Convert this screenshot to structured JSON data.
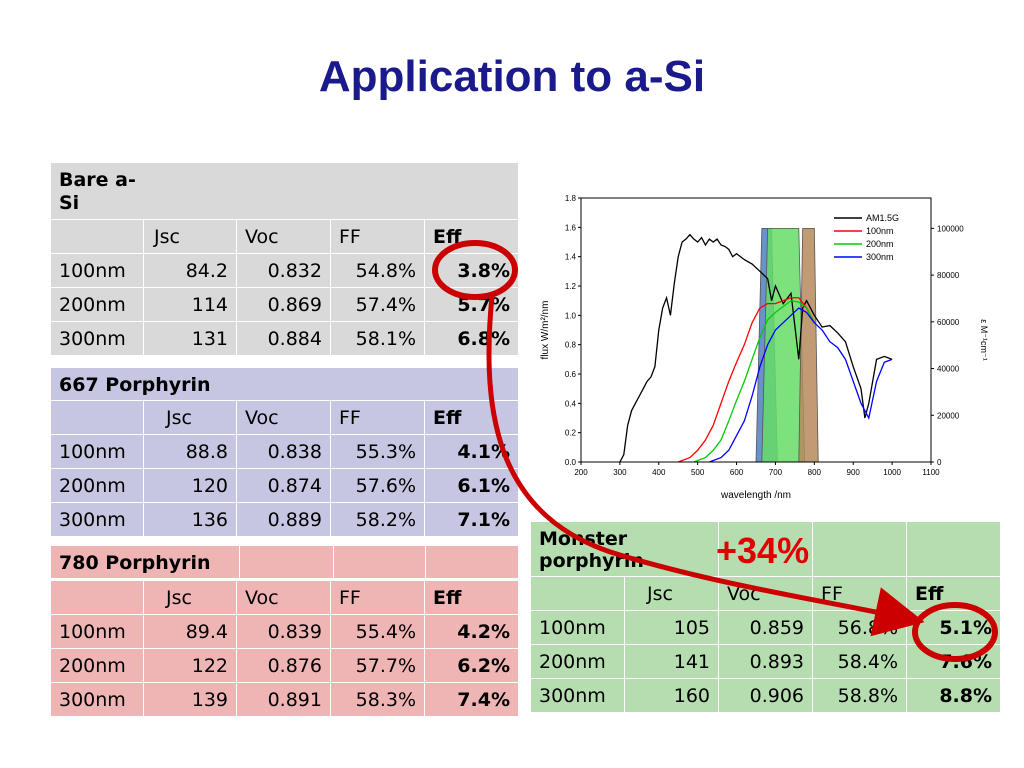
{
  "slide": {
    "title": "Application to a-Si"
  },
  "tables": {
    "bare": {
      "group": "Bare a-Si",
      "headers": [
        "",
        "Jsc",
        "Voc",
        "FF",
        "Eff"
      ],
      "rows": [
        [
          "100nm",
          "84.2",
          "0.832",
          "54.8%",
          "3.8%"
        ],
        [
          "200nm",
          "114",
          "0.869",
          "57.4%",
          "5.7%"
        ],
        [
          "300nm",
          "131",
          "0.884",
          "58.1%",
          "6.8%"
        ]
      ]
    },
    "p667": {
      "group": "667 Porphyrin",
      "headers": [
        "",
        "Jsc",
        "Voc",
        "FF",
        "Eff"
      ],
      "rows": [
        [
          "100nm",
          "88.8",
          "0.838",
          "55.3%",
          "4.1%"
        ],
        [
          "200nm",
          "120",
          "0.874",
          "57.6%",
          "6.1%"
        ],
        [
          "300nm",
          "136",
          "0.889",
          "58.2%",
          "7.1%"
        ]
      ]
    },
    "p780": {
      "group": "780 Porphyrin",
      "headers": [
        "",
        "Jsc",
        "Voc",
        "FF",
        "Eff"
      ],
      "rows": [
        [
          "100nm",
          "89.4",
          "0.839",
          "55.4%",
          "4.2%"
        ],
        [
          "200nm",
          "122",
          "0.876",
          "57.7%",
          "6.2%"
        ],
        [
          "300nm",
          "139",
          "0.891",
          "58.3%",
          "7.4%"
        ]
      ]
    },
    "monster": {
      "group": "Monster porphyrin",
      "headers": [
        "",
        "Jsc",
        "Voc",
        "FF",
        "Eff"
      ],
      "rows": [
        [
          "100nm",
          "105",
          "0.859",
          "56.8%",
          "5.1%"
        ],
        [
          "200nm",
          "141",
          "0.893",
          "58.4%",
          "7.6%"
        ],
        [
          "300nm",
          "160",
          "0.906",
          "58.8%",
          "8.8%"
        ]
      ]
    }
  },
  "annotation": {
    "improvement": "+34%",
    "color": "#cc0000"
  },
  "chart_data": {
    "type": "line",
    "xlabel": "wavelength /nm",
    "ylabel": "flux W/m²/nm",
    "y2label": "ε M⁻¹cm⁻¹",
    "xlim": [
      200,
      1100
    ],
    "ylim": [
      0,
      1.8
    ],
    "y2lim": [
      0,
      113000
    ],
    "xticks": [
      200,
      300,
      400,
      500,
      600,
      700,
      800,
      900,
      1000,
      1100
    ],
    "yticks": [
      0.0,
      0.2,
      0.4,
      0.6,
      0.8,
      1.0,
      1.2,
      1.4,
      1.6,
      1.8
    ],
    "y2ticks": [
      0,
      20000,
      40000,
      60000,
      80000,
      100000
    ],
    "legend_position": "top-right",
    "series": [
      {
        "name": "AM1.5G",
        "color": "#000000",
        "x": [
          300,
          310,
          320,
          330,
          340,
          350,
          360,
          370,
          380,
          390,
          400,
          410,
          420,
          430,
          440,
          450,
          460,
          470,
          480,
          490,
          500,
          510,
          520,
          530,
          540,
          550,
          560,
          570,
          580,
          590,
          600,
          620,
          640,
          660,
          680,
          690,
          700,
          720,
          740,
          760,
          770,
          780,
          800,
          820,
          840,
          860,
          880,
          900,
          920,
          930,
          940,
          950,
          960,
          980,
          1000
        ],
        "y": [
          0.0,
          0.05,
          0.25,
          0.35,
          0.4,
          0.45,
          0.5,
          0.55,
          0.58,
          0.65,
          0.9,
          1.05,
          1.12,
          1.0,
          1.22,
          1.4,
          1.5,
          1.52,
          1.55,
          1.52,
          1.5,
          1.53,
          1.48,
          1.52,
          1.5,
          1.52,
          1.48,
          1.47,
          1.45,
          1.4,
          1.42,
          1.38,
          1.35,
          1.3,
          1.25,
          1.1,
          1.2,
          1.08,
          1.15,
          0.7,
          1.05,
          1.1,
          1.0,
          0.92,
          0.93,
          0.88,
          0.82,
          0.65,
          0.5,
          0.3,
          0.4,
          0.55,
          0.7,
          0.72,
          0.7
        ]
      },
      {
        "name": "100nm",
        "color": "#ff0000",
        "x": [
          450,
          480,
          500,
          520,
          540,
          560,
          580,
          600,
          620,
          640,
          660,
          680,
          700,
          720,
          740,
          760,
          780,
          800
        ],
        "y": [
          0.0,
          0.03,
          0.08,
          0.15,
          0.25,
          0.4,
          0.55,
          0.68,
          0.8,
          0.95,
          1.05,
          1.08,
          1.08,
          1.1,
          1.12,
          1.12,
          1.05,
          0.95
        ]
      },
      {
        "name": "200nm",
        "color": "#00cc00",
        "x": [
          490,
          520,
          540,
          560,
          580,
          600,
          620,
          640,
          660,
          680,
          700,
          720,
          740,
          760,
          780,
          800
        ],
        "y": [
          0.0,
          0.03,
          0.08,
          0.15,
          0.28,
          0.42,
          0.55,
          0.7,
          0.85,
          0.97,
          1.02,
          1.06,
          1.1,
          1.09,
          1.05,
          0.95
        ]
      },
      {
        "name": "300nm",
        "color": "#0000ff",
        "x": [
          530,
          560,
          580,
          600,
          620,
          640,
          660,
          680,
          700,
          720,
          740,
          760,
          780,
          800,
          820,
          840,
          860,
          880,
          900,
          920,
          940,
          960,
          980,
          1000
        ],
        "y": [
          0.0,
          0.03,
          0.08,
          0.18,
          0.28,
          0.45,
          0.65,
          0.8,
          0.9,
          0.95,
          1.0,
          1.05,
          1.02,
          0.95,
          0.9,
          0.82,
          0.78,
          0.7,
          0.55,
          0.4,
          0.3,
          0.55,
          0.68,
          0.7
        ]
      }
    ],
    "absorption_bands": [
      {
        "label": "blue band",
        "color": "#4f7fbf",
        "x": [
          650,
          665,
          690,
          705
        ],
        "y2": [
          0,
          100000,
          100000,
          0
        ]
      },
      {
        "label": "green band",
        "color": "#66dd66",
        "x": [
          665,
          680,
          760,
          775
        ],
        "y2": [
          0,
          100000,
          100000,
          0
        ]
      },
      {
        "label": "brown band",
        "color": "#b58a5a",
        "x": [
          760,
          770,
          800,
          810
        ],
        "y2": [
          0,
          100000,
          100000,
          0
        ]
      }
    ]
  }
}
